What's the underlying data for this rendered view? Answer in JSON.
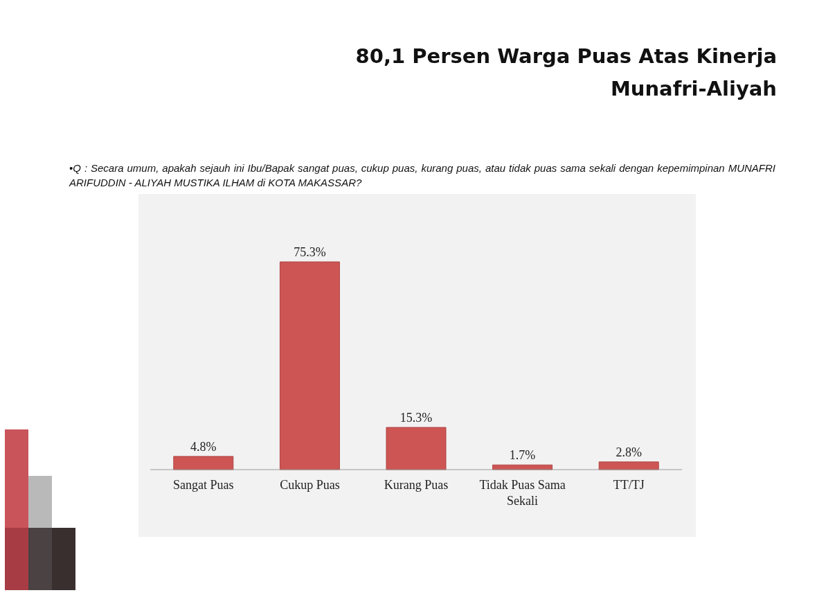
{
  "chart_data": {
    "type": "bar",
    "title": "80,1 Persen Warga Puas Atas Kinerja Munafri-Aliyah",
    "subtitle": "•Q : Secara umum, apakah sejauh ini Ibu/Bapak sangat puas, cukup puas, kurang puas, atau tidak puas sama sekali dengan kepemimpinan MUNAFRI ARIFUDDIN - ALIYAH MUSTIKA ILHAM di KOTA MAKASSAR?",
    "categories": [
      "Sangat Puas",
      "Cukup Puas",
      "Kurang Puas",
      "Tidak Puas Sama Sekali",
      "TT/TJ"
    ],
    "values": [
      4.8,
      75.3,
      15.3,
      1.7,
      2.8
    ],
    "value_labels": [
      "4.8%",
      "75.3%",
      "15.3%",
      "1.7%",
      "2.8%"
    ],
    "color": "#cd5554"
  }
}
